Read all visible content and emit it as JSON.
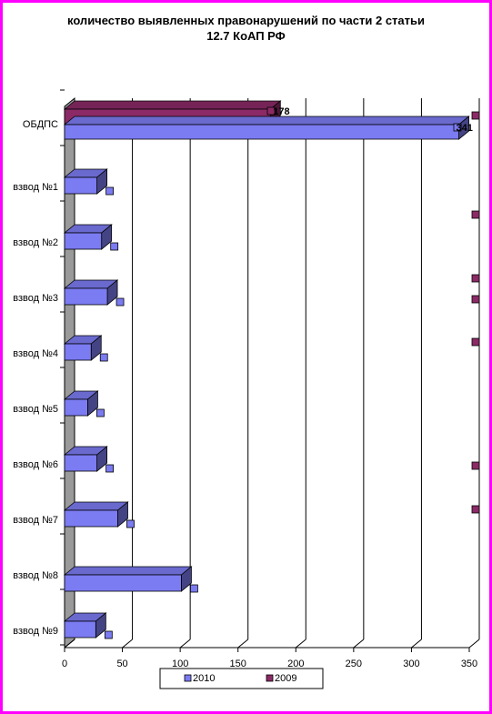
{
  "title": "количество выявленных правонарушений по части 2 статьи 12.7 КоАП РФ",
  "title_lines": [
    "количество выявленных правонарушений по части 2 статьи",
    "12.7 КоАП РФ"
  ],
  "chart_data": {
    "type": "bar",
    "orientation": "horizontal",
    "style": "3d",
    "title": "количество выявленных правонарушений по части 2 статьи 12.7 КоАП РФ",
    "categories": [
      "ОБДПС",
      "взвод №1",
      "взвод №2",
      "взвод №3",
      "взвод №4",
      "взвод №5",
      "взвод №6",
      "взвод №7",
      "взвод №8",
      "взвод №9"
    ],
    "series": [
      {
        "name": "2010",
        "color": "#7b7bf2",
        "values": [
          341,
          28,
          32,
          37,
          23,
          20,
          28,
          46,
          101,
          27
        ]
      },
      {
        "name": "2009",
        "color": "#8b2a66",
        "values": [
          178,
          null,
          null,
          null,
          null,
          null,
          null,
          null,
          null,
          null
        ]
      }
    ],
    "xlim": [
      0,
      350
    ],
    "x_ticks": [
      0,
      50,
      100,
      150,
      200,
      250,
      300,
      350
    ],
    "grid": true,
    "legend": {
      "position": "bottom",
      "entries": [
        "2010",
        "2009"
      ]
    },
    "data_labels": {
      "ОБДПС": {
        "2010": "341",
        "2009": "178"
      }
    }
  }
}
